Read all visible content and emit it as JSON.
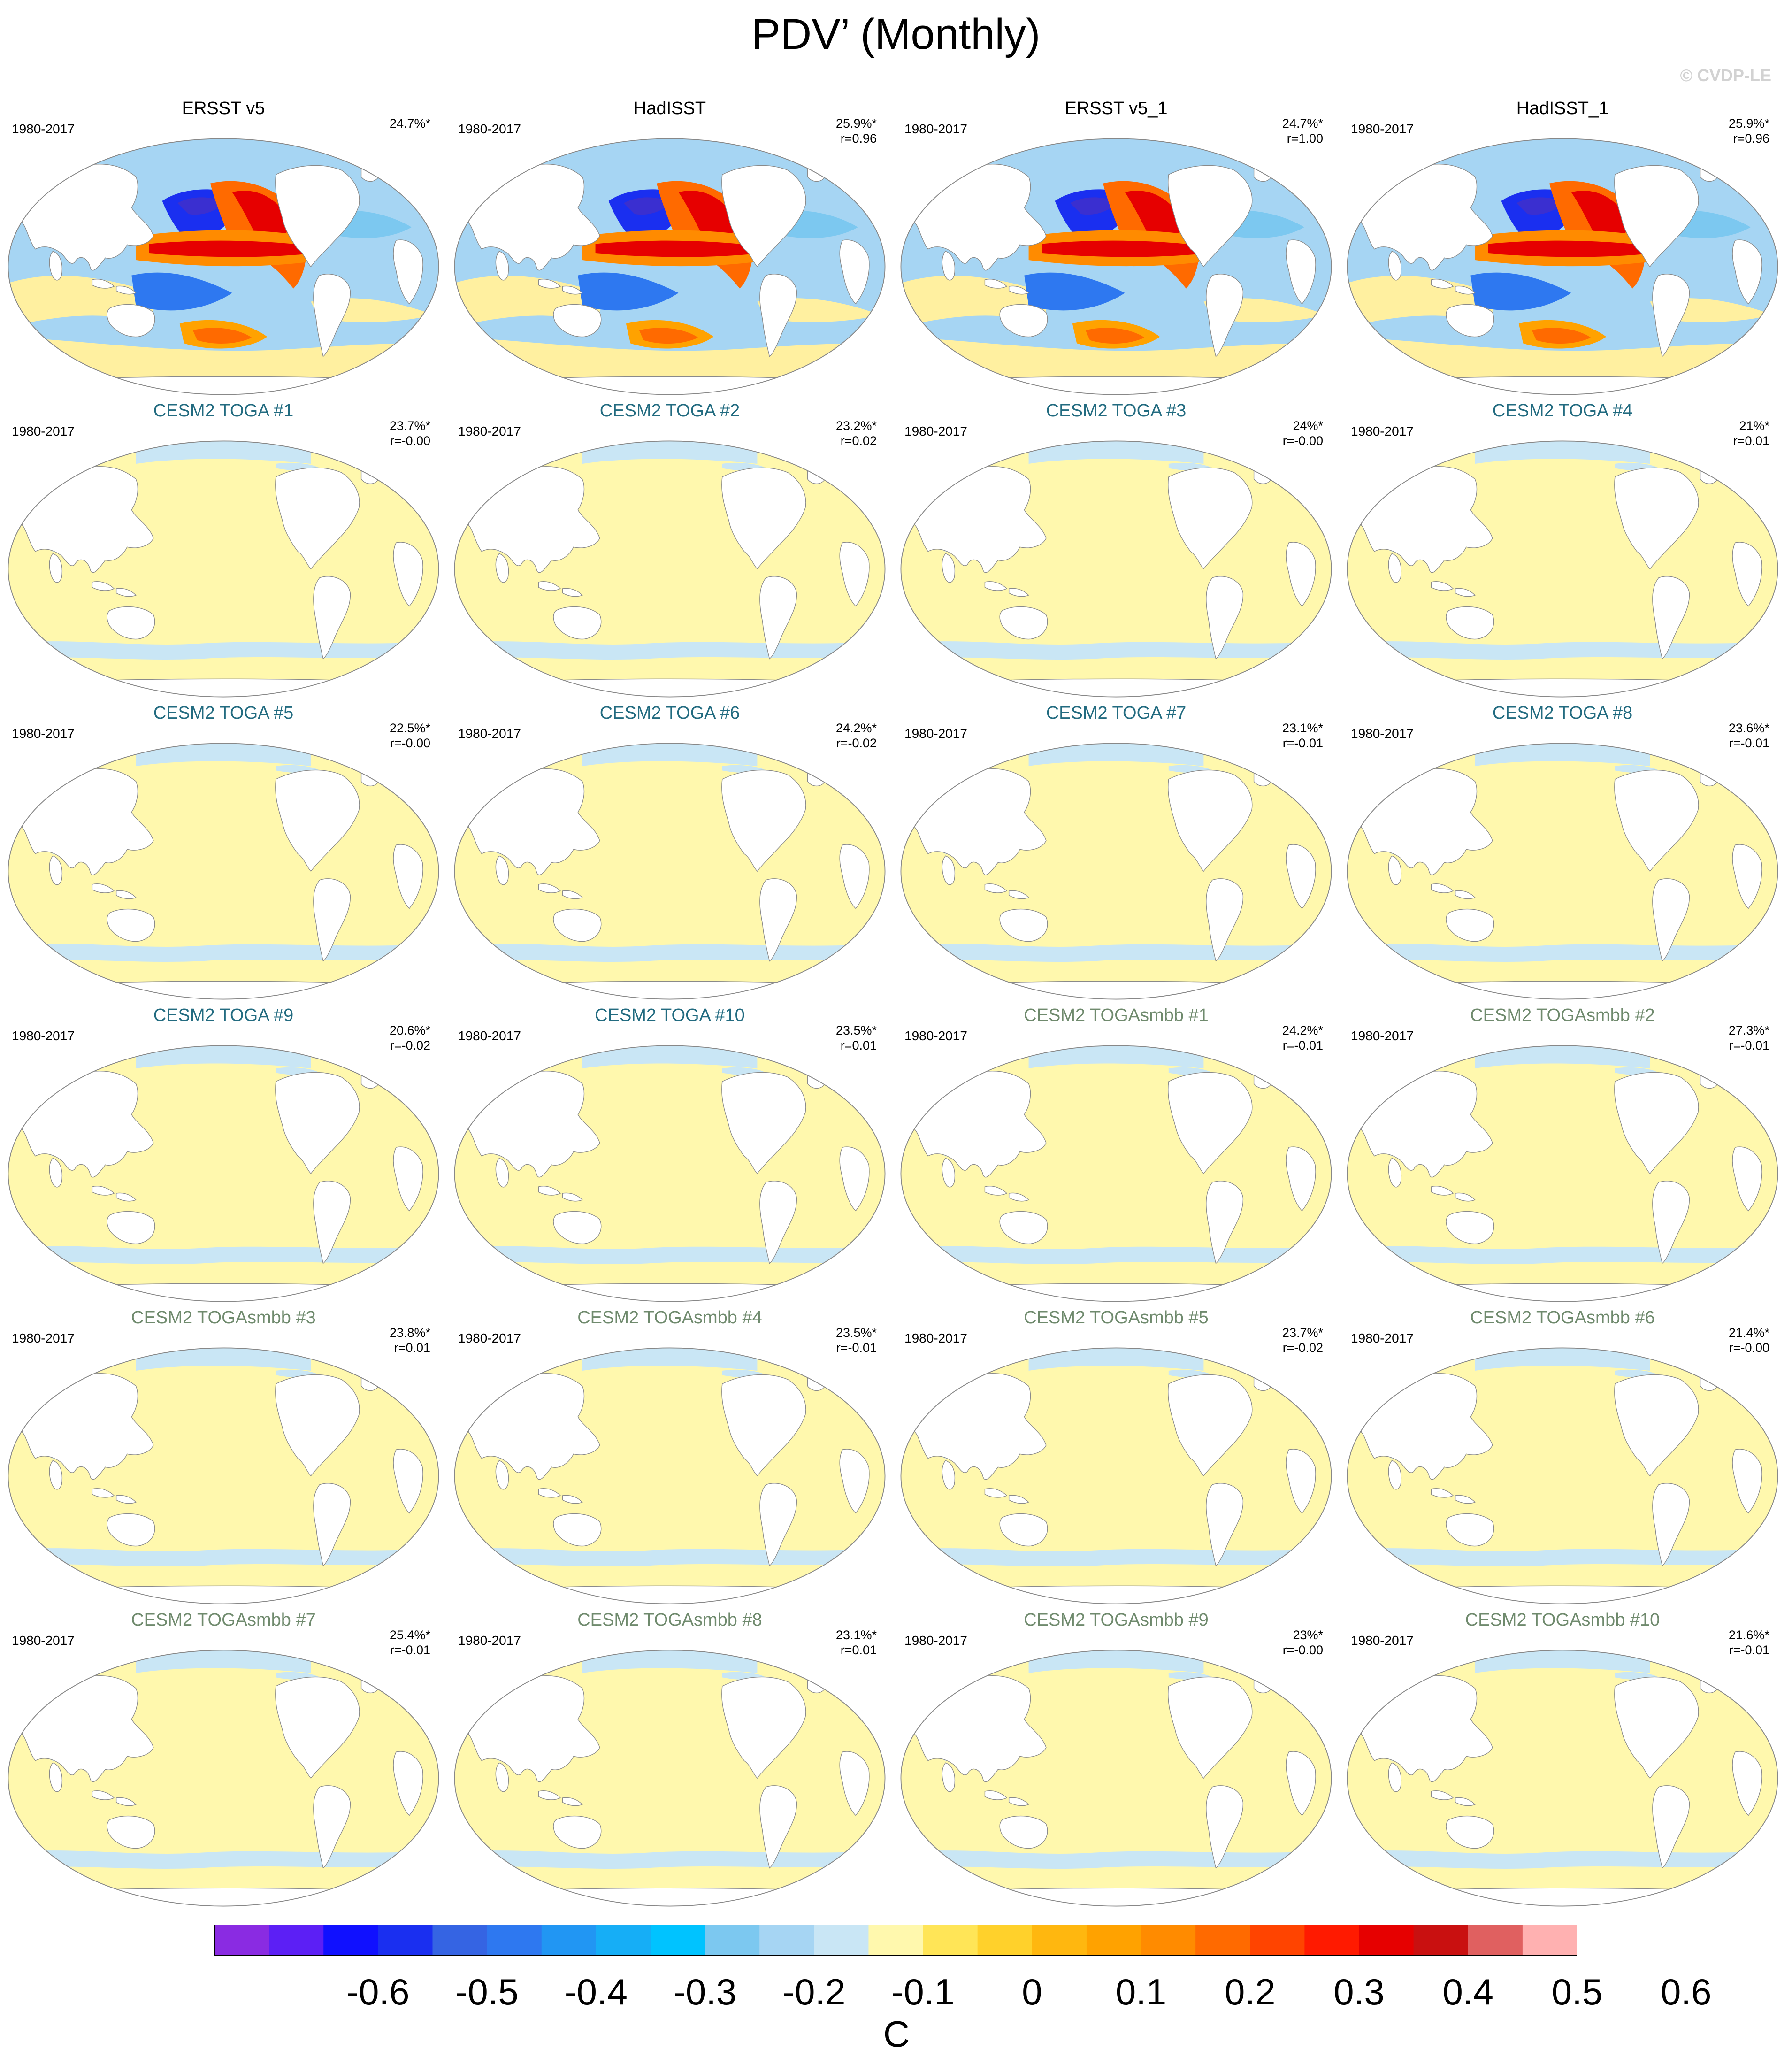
{
  "title": "PDV’ (Monthly)",
  "watermark": "© CVDP-LE",
  "colors": {
    "obs_title": "#000000",
    "toga_title": "#226b80",
    "smbb_title": "#6f8a6d",
    "land": "#ffffff",
    "coast": "#8a8a8a",
    "weak_positive": "#fff8ad",
    "weak_negative": "#c9e6f5"
  },
  "colorbar": {
    "unit": "C",
    "colors": [
      "#8a2be2",
      "#5c1ff5",
      "#1010ff",
      "#1a2ff0",
      "#3564e3",
      "#2e78f0",
      "#2196f3",
      "#16aef6",
      "#00c3ff",
      "#7cc8f0",
      "#a6d5f3",
      "#c9e6f5",
      "#fff8ad",
      "#ffe557",
      "#ffd12b",
      "#ffb70f",
      "#ffa200",
      "#ff8b00",
      "#ff6a00",
      "#ff4400",
      "#ff1a00",
      "#e60000",
      "#c91010",
      "#e06060",
      "#ffb1b1"
    ],
    "labels": [
      "-0.6",
      "-0.5",
      "-0.4",
      "-0.3",
      "-0.2",
      "-0.1",
      "0",
      "0.1",
      "0.2",
      "0.3",
      "0.4",
      "0.5",
      "0.6"
    ]
  },
  "panels": [
    {
      "title": "ERSST v5",
      "style": "obs",
      "period": "1980-2017",
      "pct": "24.7%*",
      "r": "",
      "pattern": "strong"
    },
    {
      "title": "HadISST",
      "style": "obs",
      "period": "1980-2017",
      "pct": "25.9%*",
      "r": "r=0.96",
      "pattern": "strong"
    },
    {
      "title": "ERSST v5_1",
      "style": "obs",
      "period": "1980-2017",
      "pct": "24.7%*",
      "r": "r=1.00",
      "pattern": "strong"
    },
    {
      "title": "HadISST_1",
      "style": "obs",
      "period": "1980-2017",
      "pct": "25.9%*",
      "r": "r=0.96",
      "pattern": "strong"
    },
    {
      "title": "CESM2 TOGA #1",
      "style": "toga",
      "period": "1980-2017",
      "pct": "23.7%*",
      "r": "r=-0.00",
      "pattern": "weak"
    },
    {
      "title": "CESM2 TOGA #2",
      "style": "toga",
      "period": "1980-2017",
      "pct": "23.2%*",
      "r": "r=0.02",
      "pattern": "weak"
    },
    {
      "title": "CESM2 TOGA #3",
      "style": "toga",
      "period": "1980-2017",
      "pct": "24%*",
      "r": "r=-0.00",
      "pattern": "weak"
    },
    {
      "title": "CESM2 TOGA #4",
      "style": "toga",
      "period": "1980-2017",
      "pct": "21%*",
      "r": "r=0.01",
      "pattern": "weak"
    },
    {
      "title": "CESM2 TOGA #5",
      "style": "toga",
      "period": "1980-2017",
      "pct": "22.5%*",
      "r": "r=-0.00",
      "pattern": "weak"
    },
    {
      "title": "CESM2 TOGA #6",
      "style": "toga",
      "period": "1980-2017",
      "pct": "24.2%*",
      "r": "r=-0.02",
      "pattern": "weak"
    },
    {
      "title": "CESM2 TOGA #7",
      "style": "toga",
      "period": "1980-2017",
      "pct": "23.1%*",
      "r": "r=-0.01",
      "pattern": "weak"
    },
    {
      "title": "CESM2 TOGA #8",
      "style": "toga",
      "period": "1980-2017",
      "pct": "23.6%*",
      "r": "r=-0.01",
      "pattern": "weak"
    },
    {
      "title": "CESM2 TOGA #9",
      "style": "toga",
      "period": "1980-2017",
      "pct": "20.6%*",
      "r": "r=-0.02",
      "pattern": "weak"
    },
    {
      "title": "CESM2 TOGA #10",
      "style": "toga",
      "period": "1980-2017",
      "pct": "23.5%*",
      "r": "r=0.01",
      "pattern": "weak"
    },
    {
      "title": "CESM2 TOGAsmbb #1",
      "style": "smbb",
      "period": "1980-2017",
      "pct": "24.2%*",
      "r": "r=-0.01",
      "pattern": "weak"
    },
    {
      "title": "CESM2 TOGAsmbb #2",
      "style": "smbb",
      "period": "1980-2017",
      "pct": "27.3%*",
      "r": "r=-0.01",
      "pattern": "weak"
    },
    {
      "title": "CESM2 TOGAsmbb #3",
      "style": "smbb",
      "period": "1980-2017",
      "pct": "23.8%*",
      "r": "r=0.01",
      "pattern": "weak"
    },
    {
      "title": "CESM2 TOGAsmbb #4",
      "style": "smbb",
      "period": "1980-2017",
      "pct": "23.5%*",
      "r": "r=-0.01",
      "pattern": "weak"
    },
    {
      "title": "CESM2 TOGAsmbb #5",
      "style": "smbb",
      "period": "1980-2017",
      "pct": "23.7%*",
      "r": "r=-0.02",
      "pattern": "weak"
    },
    {
      "title": "CESM2 TOGAsmbb #6",
      "style": "smbb",
      "period": "1980-2017",
      "pct": "21.4%*",
      "r": "r=-0.00",
      "pattern": "weak"
    },
    {
      "title": "CESM2 TOGAsmbb #7",
      "style": "smbb",
      "period": "1980-2017",
      "pct": "25.4%*",
      "r": "r=-0.01",
      "pattern": "weak"
    },
    {
      "title": "CESM2 TOGAsmbb #8",
      "style": "smbb",
      "period": "1980-2017",
      "pct": "23.1%*",
      "r": "r=0.01",
      "pattern": "weak"
    },
    {
      "title": "CESM2 TOGAsmbb #9",
      "style": "smbb",
      "period": "1980-2017",
      "pct": "23%*",
      "r": "r=-0.00",
      "pattern": "weak"
    },
    {
      "title": "CESM2 TOGAsmbb #10",
      "style": "smbb",
      "period": "1980-2017",
      "pct": "21.6%*",
      "r": "r=-0.01",
      "pattern": "weak"
    }
  ]
}
